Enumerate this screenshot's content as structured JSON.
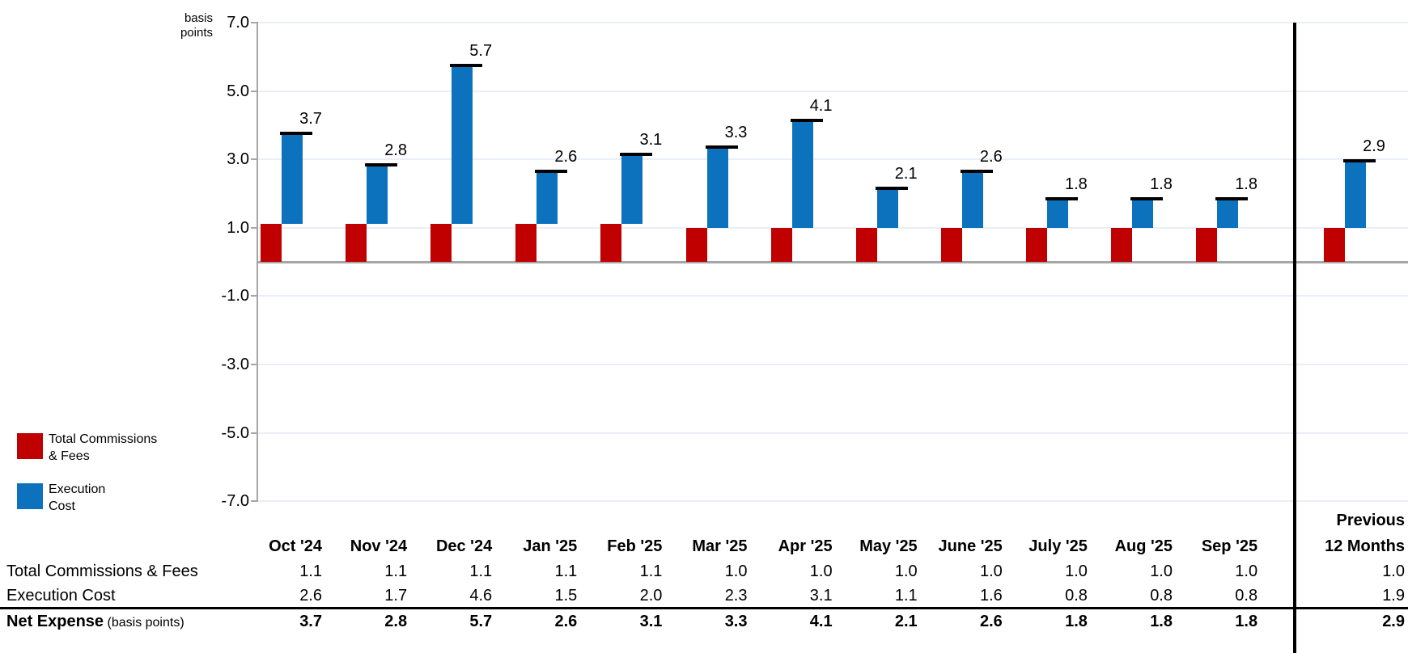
{
  "chart_data": {
    "type": "bar",
    "title": "",
    "ylabel_lines": [
      "basis",
      "points"
    ],
    "y_ticks": [
      7.0,
      5.0,
      3.0,
      1.0,
      -1.0,
      -3.0,
      -5.0,
      -7.0
    ],
    "ylim": [
      -7.0,
      7.0
    ],
    "grid": true,
    "categories": [
      "Oct '24",
      "Nov '24",
      "Dec '24",
      "Jan '25",
      "Feb '25",
      "Mar '25",
      "Apr '25",
      "May '25",
      "June '25",
      "July '25",
      "Aug '25",
      "Sep '25"
    ],
    "previous_column_lines": [
      "Previous",
      "12 Months"
    ],
    "series": [
      {
        "name": "Total Commissions & Fees",
        "color": "#C00000",
        "values": [
          1.1,
          1.1,
          1.1,
          1.1,
          1.1,
          1.0,
          1.0,
          1.0,
          1.0,
          1.0,
          1.0,
          1.0
        ],
        "previous": 1.0
      },
      {
        "name": "Execution Cost",
        "color": "#0C72BE",
        "values": [
          2.6,
          1.7,
          4.6,
          1.5,
          2.0,
          2.3,
          3.1,
          1.1,
          1.6,
          0.8,
          0.8,
          0.8
        ],
        "previous": 1.9
      },
      {
        "name": "Net Expense",
        "marker": "black-dash",
        "values": [
          3.7,
          2.8,
          5.7,
          2.6,
          3.1,
          3.3,
          4.1,
          2.1,
          2.6,
          1.8,
          1.8,
          1.8
        ],
        "previous": 2.9
      }
    ]
  },
  "legend": {
    "items": [
      {
        "label_lines": [
          "Total Commissions",
          "& Fees"
        ],
        "color": "#C00000"
      },
      {
        "label_lines": [
          "Execution",
          "Cost"
        ],
        "color": "#0C72BE"
      }
    ]
  },
  "table": {
    "columns": [
      "Oct '24",
      "Nov '24",
      "Dec '24",
      "Jan '25",
      "Feb '25",
      "Mar '25",
      "Apr '25",
      "May '25",
      "June '25",
      "July '25",
      "Aug '25",
      "Sep '25"
    ],
    "previous_column_lines": [
      "Previous",
      "12 Months"
    ],
    "rows": [
      {
        "label": "Total Commissions & Fees",
        "bold": false,
        "values": [
          1.1,
          1.1,
          1.1,
          1.1,
          1.1,
          1.0,
          1.0,
          1.0,
          1.0,
          1.0,
          1.0,
          1.0
        ],
        "previous": 1.0
      },
      {
        "label": "Execution Cost",
        "bold": false,
        "values": [
          2.6,
          1.7,
          4.6,
          1.5,
          2.0,
          2.3,
          3.1,
          1.1,
          1.6,
          0.8,
          0.8,
          0.8
        ],
        "previous": 1.9
      },
      {
        "label": "Net Expense",
        "label_suffix": "(basis points)",
        "bold": true,
        "values": [
          3.7,
          2.8,
          5.7,
          2.6,
          3.1,
          3.3,
          4.1,
          2.1,
          2.6,
          1.8,
          1.8,
          1.8
        ],
        "previous": 2.9
      }
    ]
  },
  "colors": {
    "red": "#C00000",
    "blue": "#0C72BE",
    "gridline": "#E9EFF8",
    "axis": "#A6A6A6",
    "marker": "#000000",
    "separator": "#000000"
  }
}
